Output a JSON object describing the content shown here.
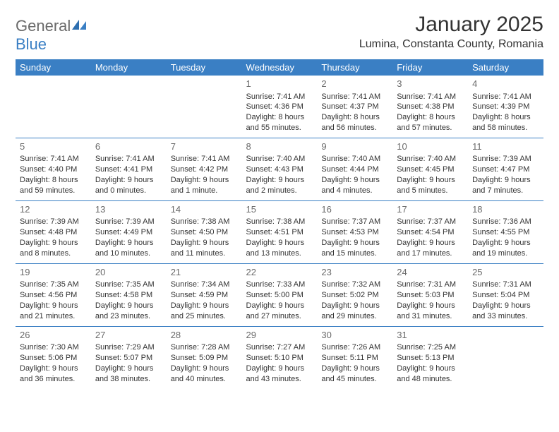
{
  "brand": {
    "general": "General",
    "blue": "Blue"
  },
  "title": "January 2025",
  "location": "Lumina, Constanta County, Romania",
  "colors": {
    "header_bg": "#3a7fc4",
    "header_text": "#ffffff",
    "rule": "#3a7fc4",
    "body_text": "#333333",
    "daynum": "#6a6a6a",
    "logo_gray": "#6a6a6a",
    "logo_blue": "#3a7fc4",
    "page_bg": "#ffffff"
  },
  "weekdays": [
    "Sunday",
    "Monday",
    "Tuesday",
    "Wednesday",
    "Thursday",
    "Friday",
    "Saturday"
  ],
  "weeks": [
    [
      null,
      null,
      null,
      {
        "n": "1",
        "sr": "Sunrise: 7:41 AM",
        "ss": "Sunset: 4:36 PM",
        "d1": "Daylight: 8 hours",
        "d2": "and 55 minutes."
      },
      {
        "n": "2",
        "sr": "Sunrise: 7:41 AM",
        "ss": "Sunset: 4:37 PM",
        "d1": "Daylight: 8 hours",
        "d2": "and 56 minutes."
      },
      {
        "n": "3",
        "sr": "Sunrise: 7:41 AM",
        "ss": "Sunset: 4:38 PM",
        "d1": "Daylight: 8 hours",
        "d2": "and 57 minutes."
      },
      {
        "n": "4",
        "sr": "Sunrise: 7:41 AM",
        "ss": "Sunset: 4:39 PM",
        "d1": "Daylight: 8 hours",
        "d2": "and 58 minutes."
      }
    ],
    [
      {
        "n": "5",
        "sr": "Sunrise: 7:41 AM",
        "ss": "Sunset: 4:40 PM",
        "d1": "Daylight: 8 hours",
        "d2": "and 59 minutes."
      },
      {
        "n": "6",
        "sr": "Sunrise: 7:41 AM",
        "ss": "Sunset: 4:41 PM",
        "d1": "Daylight: 9 hours",
        "d2": "and 0 minutes."
      },
      {
        "n": "7",
        "sr": "Sunrise: 7:41 AM",
        "ss": "Sunset: 4:42 PM",
        "d1": "Daylight: 9 hours",
        "d2": "and 1 minute."
      },
      {
        "n": "8",
        "sr": "Sunrise: 7:40 AM",
        "ss": "Sunset: 4:43 PM",
        "d1": "Daylight: 9 hours",
        "d2": "and 2 minutes."
      },
      {
        "n": "9",
        "sr": "Sunrise: 7:40 AM",
        "ss": "Sunset: 4:44 PM",
        "d1": "Daylight: 9 hours",
        "d2": "and 4 minutes."
      },
      {
        "n": "10",
        "sr": "Sunrise: 7:40 AM",
        "ss": "Sunset: 4:45 PM",
        "d1": "Daylight: 9 hours",
        "d2": "and 5 minutes."
      },
      {
        "n": "11",
        "sr": "Sunrise: 7:39 AM",
        "ss": "Sunset: 4:47 PM",
        "d1": "Daylight: 9 hours",
        "d2": "and 7 minutes."
      }
    ],
    [
      {
        "n": "12",
        "sr": "Sunrise: 7:39 AM",
        "ss": "Sunset: 4:48 PM",
        "d1": "Daylight: 9 hours",
        "d2": "and 8 minutes."
      },
      {
        "n": "13",
        "sr": "Sunrise: 7:39 AM",
        "ss": "Sunset: 4:49 PM",
        "d1": "Daylight: 9 hours",
        "d2": "and 10 minutes."
      },
      {
        "n": "14",
        "sr": "Sunrise: 7:38 AM",
        "ss": "Sunset: 4:50 PM",
        "d1": "Daylight: 9 hours",
        "d2": "and 11 minutes."
      },
      {
        "n": "15",
        "sr": "Sunrise: 7:38 AM",
        "ss": "Sunset: 4:51 PM",
        "d1": "Daylight: 9 hours",
        "d2": "and 13 minutes."
      },
      {
        "n": "16",
        "sr": "Sunrise: 7:37 AM",
        "ss": "Sunset: 4:53 PM",
        "d1": "Daylight: 9 hours",
        "d2": "and 15 minutes."
      },
      {
        "n": "17",
        "sr": "Sunrise: 7:37 AM",
        "ss": "Sunset: 4:54 PM",
        "d1": "Daylight: 9 hours",
        "d2": "and 17 minutes."
      },
      {
        "n": "18",
        "sr": "Sunrise: 7:36 AM",
        "ss": "Sunset: 4:55 PM",
        "d1": "Daylight: 9 hours",
        "d2": "and 19 minutes."
      }
    ],
    [
      {
        "n": "19",
        "sr": "Sunrise: 7:35 AM",
        "ss": "Sunset: 4:56 PM",
        "d1": "Daylight: 9 hours",
        "d2": "and 21 minutes."
      },
      {
        "n": "20",
        "sr": "Sunrise: 7:35 AM",
        "ss": "Sunset: 4:58 PM",
        "d1": "Daylight: 9 hours",
        "d2": "and 23 minutes."
      },
      {
        "n": "21",
        "sr": "Sunrise: 7:34 AM",
        "ss": "Sunset: 4:59 PM",
        "d1": "Daylight: 9 hours",
        "d2": "and 25 minutes."
      },
      {
        "n": "22",
        "sr": "Sunrise: 7:33 AM",
        "ss": "Sunset: 5:00 PM",
        "d1": "Daylight: 9 hours",
        "d2": "and 27 minutes."
      },
      {
        "n": "23",
        "sr": "Sunrise: 7:32 AM",
        "ss": "Sunset: 5:02 PM",
        "d1": "Daylight: 9 hours",
        "d2": "and 29 minutes."
      },
      {
        "n": "24",
        "sr": "Sunrise: 7:31 AM",
        "ss": "Sunset: 5:03 PM",
        "d1": "Daylight: 9 hours",
        "d2": "and 31 minutes."
      },
      {
        "n": "25",
        "sr": "Sunrise: 7:31 AM",
        "ss": "Sunset: 5:04 PM",
        "d1": "Daylight: 9 hours",
        "d2": "and 33 minutes."
      }
    ],
    [
      {
        "n": "26",
        "sr": "Sunrise: 7:30 AM",
        "ss": "Sunset: 5:06 PM",
        "d1": "Daylight: 9 hours",
        "d2": "and 36 minutes."
      },
      {
        "n": "27",
        "sr": "Sunrise: 7:29 AM",
        "ss": "Sunset: 5:07 PM",
        "d1": "Daylight: 9 hours",
        "d2": "and 38 minutes."
      },
      {
        "n": "28",
        "sr": "Sunrise: 7:28 AM",
        "ss": "Sunset: 5:09 PM",
        "d1": "Daylight: 9 hours",
        "d2": "and 40 minutes."
      },
      {
        "n": "29",
        "sr": "Sunrise: 7:27 AM",
        "ss": "Sunset: 5:10 PM",
        "d1": "Daylight: 9 hours",
        "d2": "and 43 minutes."
      },
      {
        "n": "30",
        "sr": "Sunrise: 7:26 AM",
        "ss": "Sunset: 5:11 PM",
        "d1": "Daylight: 9 hours",
        "d2": "and 45 minutes."
      },
      {
        "n": "31",
        "sr": "Sunrise: 7:25 AM",
        "ss": "Sunset: 5:13 PM",
        "d1": "Daylight: 9 hours",
        "d2": "and 48 minutes."
      },
      null
    ]
  ]
}
